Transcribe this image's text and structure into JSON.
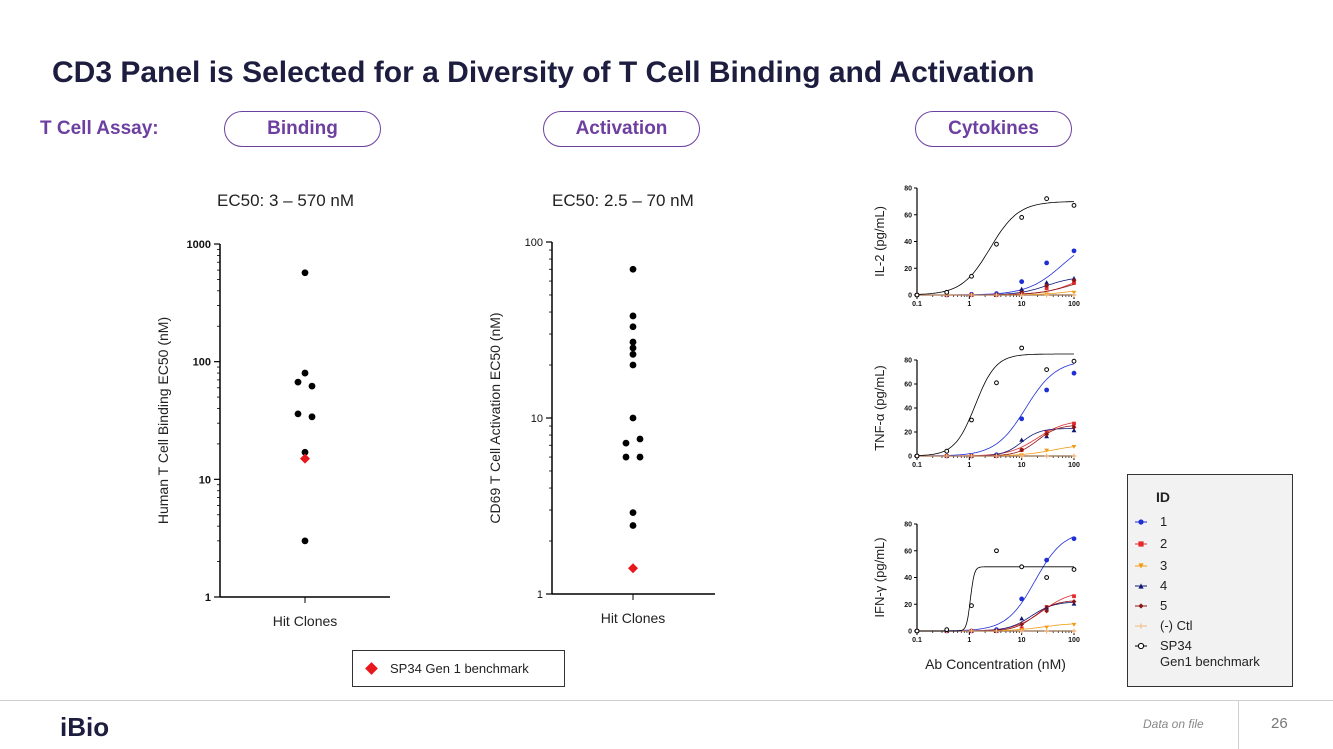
{
  "title": "CD3 Panel is Selected for a Diversity of T Cell Binding and Activation",
  "assay_label": "T Cell Assay:",
  "pills": [
    "Binding",
    "Activation",
    "Cytokines"
  ],
  "benchmark_legend": "SP34 Gen 1 benchmark",
  "footer": {
    "logo": "iBio",
    "data_note": "Data on file",
    "page": "26"
  },
  "colors": {
    "accent": "#6d3fa0",
    "title": "#1d1d3f",
    "benchmark": "#e8171c"
  },
  "chart_data": [
    {
      "type": "scatter",
      "title": "EC50: 3 – 570 nM",
      "ylabel": "Human T Cell Binding EC50 (nM)",
      "xlabel": "",
      "categories": [
        "Hit Clones"
      ],
      "yscale": "log",
      "ylim": [
        1,
        1000
      ],
      "yticks": [
        "1",
        "10",
        "100",
        "1000"
      ],
      "series": [
        {
          "name": "Hit clones",
          "values": [
            570,
            80,
            67,
            62,
            36,
            34,
            17,
            3
          ]
        },
        {
          "name": "SP34 Gen 1 benchmark",
          "values": [
            15
          ]
        }
      ]
    },
    {
      "type": "scatter",
      "title": "EC50: 2.5 – 70 nM",
      "ylabel": "CD69 T Cell Activation EC50 (nM)",
      "xlabel": "",
      "categories": [
        "Hit Clones"
      ],
      "yscale": "log",
      "ylim": [
        1,
        100
      ],
      "yticks": [
        "1",
        "10",
        "100"
      ],
      "series": [
        {
          "name": "Hit clones",
          "values": [
            70,
            38,
            33,
            27,
            25,
            23,
            20,
            10,
            7.6,
            7.2,
            6,
            6,
            2.9,
            2.45
          ]
        },
        {
          "name": "SP34 Gen 1 benchmark",
          "values": [
            1.4
          ]
        }
      ]
    },
    {
      "type": "line",
      "ylabel": "IL-2 (pg/mL)",
      "xlabel": "",
      "xscale": "log",
      "xlim": [
        0.1,
        100
      ],
      "ylim": [
        0,
        80
      ],
      "xticks": [
        "0.1",
        "1",
        "10",
        "100"
      ],
      "yticks": [
        "0",
        "20",
        "40",
        "60",
        "80"
      ],
      "x": [
        0.1,
        0.37,
        1.1,
        3.3,
        10,
        30,
        100
      ],
      "series": [
        {
          "name": "1",
          "values": [
            0,
            0,
            0.5,
            1,
            10,
            24,
            33
          ]
        },
        {
          "name": "2",
          "values": [
            0,
            0,
            0,
            0,
            2,
            5,
            9
          ]
        },
        {
          "name": "3",
          "values": [
            0,
            0,
            0,
            0,
            0,
            1,
            2
          ]
        },
        {
          "name": "4",
          "values": [
            0,
            0,
            0,
            0.5,
            4,
            9,
            12
          ]
        },
        {
          "name": "5",
          "values": [
            0,
            0,
            0,
            0,
            2,
            7,
            11
          ]
        },
        {
          "name": "(-) Ctl",
          "values": [
            0,
            0,
            0,
            0,
            0,
            0,
            0
          ]
        },
        {
          "name": "SP34 Gen1 benchmark",
          "values": [
            0,
            2,
            14,
            38,
            58,
            72,
            67
          ]
        }
      ]
    },
    {
      "type": "line",
      "ylabel": "TNF-α (pg/mL)",
      "xlabel": "",
      "xscale": "log",
      "xlim": [
        0.1,
        100
      ],
      "ylim": [
        0,
        80
      ],
      "xticks": [
        "0.1",
        "1",
        "10",
        "100"
      ],
      "yticks": [
        "0",
        "20",
        "40",
        "60",
        "80"
      ],
      "x": [
        0.1,
        0.37,
        1.1,
        3.3,
        10,
        30,
        100
      ],
      "series": [
        {
          "name": "1",
          "values": [
            0,
            0,
            0,
            1,
            31,
            55,
            69
          ]
        },
        {
          "name": "2",
          "values": [
            0,
            0,
            0,
            0,
            5,
            20,
            27
          ]
        },
        {
          "name": "3",
          "values": [
            0,
            0,
            0,
            0,
            1,
            5,
            8
          ]
        },
        {
          "name": "4",
          "values": [
            0,
            0,
            0,
            0,
            13,
            16,
            21
          ]
        },
        {
          "name": "5",
          "values": [
            0,
            0,
            0,
            0,
            5,
            18,
            24
          ]
        },
        {
          "name": "(-) Ctl",
          "values": [
            0,
            0,
            0,
            0,
            0,
            0,
            0
          ]
        },
        {
          "name": "SP34 Gen1 benchmark",
          "values": [
            0,
            4,
            30,
            61,
            90,
            72,
            79
          ]
        }
      ]
    },
    {
      "type": "line",
      "ylabel": "IFN-γ (pg/mL)",
      "xlabel": "Ab Concentration (nM)",
      "xscale": "log",
      "xlim": [
        0.1,
        100
      ],
      "ylim": [
        0,
        80
      ],
      "xticks": [
        "0.1",
        "1",
        "10",
        "100"
      ],
      "yticks": [
        "0",
        "20",
        "40",
        "60",
        "80"
      ],
      "x": [
        0.1,
        0.37,
        1.1,
        3.3,
        10,
        30,
        100
      ],
      "series": [
        {
          "name": "1",
          "values": [
            0,
            0,
            0,
            1,
            24,
            53,
            69
          ]
        },
        {
          "name": "2",
          "values": [
            0,
            0,
            0,
            0,
            2,
            18,
            26
          ]
        },
        {
          "name": "3",
          "values": [
            0,
            0,
            0,
            0,
            1,
            3,
            5
          ]
        },
        {
          "name": "4",
          "values": [
            0,
            0,
            0,
            0,
            9,
            17,
            20
          ]
        },
        {
          "name": "5",
          "values": [
            0,
            0,
            0,
            0,
            5,
            15,
            22
          ]
        },
        {
          "name": "(-) Ctl",
          "values": [
            0,
            0,
            0,
            0,
            0,
            0,
            0
          ]
        },
        {
          "name": "SP34 Gen1 benchmark",
          "values": [
            0,
            1,
            19,
            60,
            48,
            40,
            46
          ]
        }
      ]
    }
  ],
  "legend": {
    "title": "ID",
    "items": [
      {
        "label": "1",
        "color": "#1f2fd6",
        "marker": "circle"
      },
      {
        "label": "2",
        "color": "#e32b2b",
        "marker": "square"
      },
      {
        "label": "3",
        "color": "#f29b14",
        "marker": "triangle-down"
      },
      {
        "label": "4",
        "color": "#101873",
        "marker": "triangle-up"
      },
      {
        "label": "5",
        "color": "#8b1414",
        "marker": "diamond"
      },
      {
        "label": "(-) Ctl",
        "color": "#f6b77c",
        "marker": "plus"
      },
      {
        "label": "SP34\nGen1 benchmark",
        "color": "#000000",
        "marker": "open-circle"
      }
    ]
  }
}
